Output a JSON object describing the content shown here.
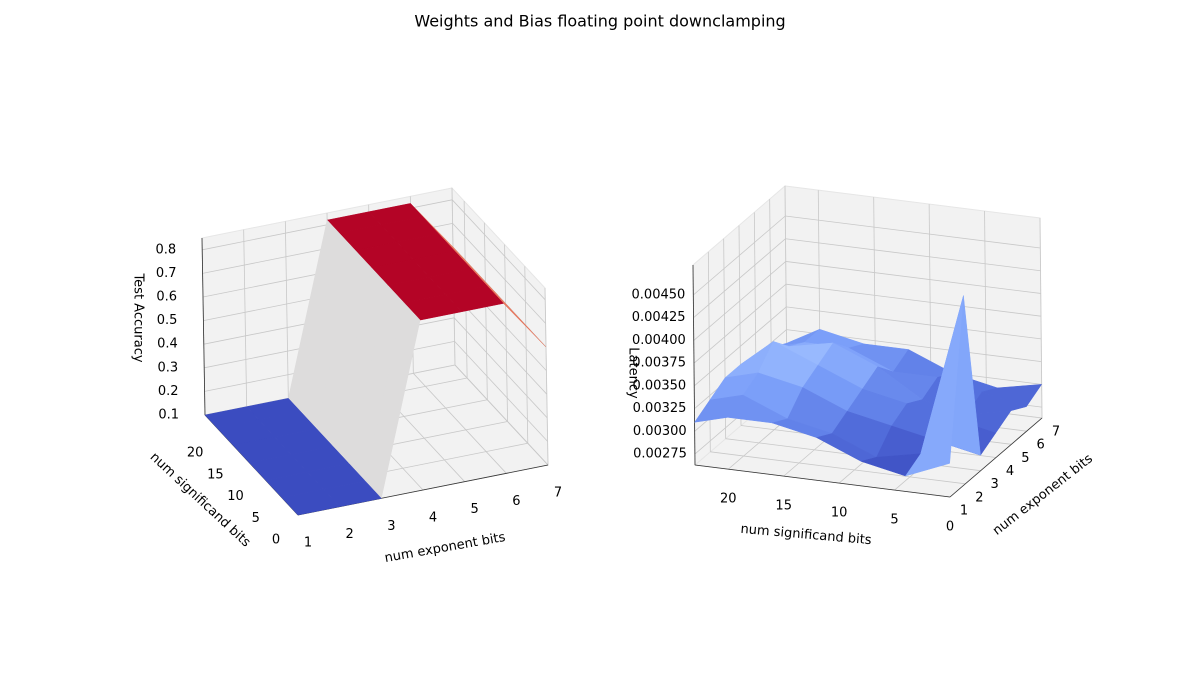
{
  "title": "Weights and Bias floating point downclamping",
  "chart_data": [
    {
      "type": "surface3d",
      "colormap": "coolwarm",
      "xlabel": "num exponent bits",
      "ylabel": "num significand bits",
      "zlabel": "Test Accuracy",
      "x": [
        1,
        2,
        3,
        4,
        5,
        6,
        7
      ],
      "y": [
        0,
        4,
        8,
        12,
        16,
        20,
        23
      ],
      "z": [
        [
          0.1,
          0.1,
          0.1,
          0.82,
          0.82,
          0.82,
          0.6
        ],
        [
          0.1,
          0.1,
          0.1,
          0.82,
          0.82,
          0.82,
          0.6
        ],
        [
          0.1,
          0.1,
          0.1,
          0.82,
          0.82,
          0.82,
          0.6
        ],
        [
          0.1,
          0.1,
          0.1,
          0.82,
          0.82,
          0.82,
          0.6
        ],
        [
          0.1,
          0.1,
          0.1,
          0.82,
          0.82,
          0.82,
          0.6
        ],
        [
          0.1,
          0.1,
          0.1,
          0.82,
          0.82,
          0.82,
          0.6
        ],
        [
          0.1,
          0.1,
          0.1,
          0.82,
          0.82,
          0.82,
          0.6
        ]
      ],
      "xlim": [
        1,
        7
      ],
      "ylim": [
        0,
        23
      ],
      "zlim": [
        0.1,
        0.85
      ],
      "xticks": [
        1,
        2,
        3,
        4,
        5,
        6,
        7
      ],
      "yticks": [
        0,
        5,
        10,
        15,
        20
      ],
      "zticks": [
        0.1,
        0.2,
        0.3,
        0.4,
        0.5,
        0.6,
        0.7,
        0.8
      ],
      "grid": true
    },
    {
      "type": "surface3d",
      "colormap": "coolwarm",
      "xlabel": "num exponent bits",
      "ylabel": "num significand bits",
      "zlabel": "Latency",
      "x": [
        1,
        2,
        3,
        4,
        5,
        6,
        7
      ],
      "y": [
        0,
        4,
        8,
        12,
        16,
        20,
        23
      ],
      "z": [
        [
          0.003,
          0.0047,
          0.0028,
          0.0029,
          0.003,
          0.0029,
          0.003
        ],
        [
          0.0028,
          0.0029,
          0.0029,
          0.003,
          0.0029,
          0.003,
          0.0029
        ],
        [
          0.0029,
          0.0028,
          0.003,
          0.0031,
          0.003,
          0.0031,
          0.003
        ],
        [
          0.0031,
          0.003,
          0.0031,
          0.0032,
          0.0033,
          0.0031,
          0.0032
        ],
        [
          0.0032,
          0.0031,
          0.0033,
          0.0034,
          0.0035,
          0.0033,
          0.0032
        ],
        [
          0.0032,
          0.0033,
          0.0034,
          0.0036,
          0.0034,
          0.0033,
          0.0033
        ],
        [
          0.0031,
          0.0032,
          0.0033,
          0.0033,
          0.0032,
          0.0032,
          0.0031
        ]
      ],
      "xlim": [
        1,
        7
      ],
      "ylim": [
        0,
        23
      ],
      "zlim": [
        0.00263,
        0.00483
      ],
      "xticks": [
        1,
        2,
        3,
        4,
        5,
        6,
        7
      ],
      "yticks": [
        0,
        5,
        10,
        15,
        20
      ],
      "zticks": [
        0.00275,
        {
          "value": 0.003,
          "label": "0.00300"
        },
        0.00325,
        {
          "value": 0.0035,
          "label": "0.00350"
        },
        0.00375,
        {
          "value": 0.004,
          "label": "0.00400"
        },
        0.00425,
        {
          "value": 0.0045,
          "label": "0.00450"
        }
      ],
      "grid": true
    }
  ]
}
